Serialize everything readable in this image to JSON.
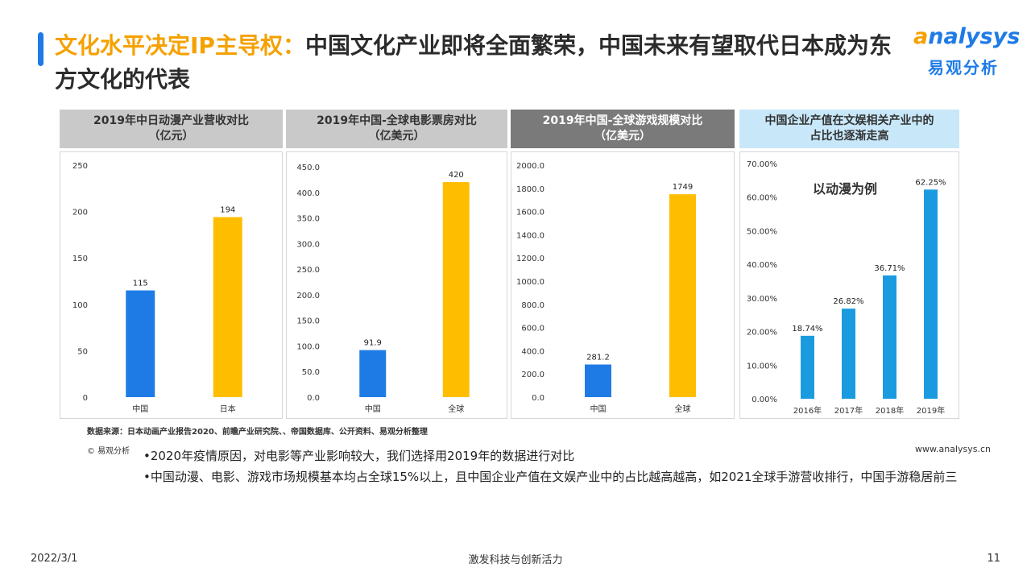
{
  "title": {
    "highlight": "文化水平决定IP主导权：",
    "rest": "中国文化产业即将全面繁荣，中国未来有望取代日本成为东方文化的代表"
  },
  "logo": {
    "en_o": "a",
    "en_rest": "nalysys",
    "cn": "易观分析"
  },
  "colors": {
    "blue": "#1e7be6",
    "yellow": "#ffbd00",
    "sky": "#1a9be0",
    "accent": "#f5a100"
  },
  "chart_data": [
    {
      "type": "bar",
      "title": "2019年中日动漫产业营收对比\n（亿元）",
      "categories": [
        "中国",
        "日本"
      ],
      "values": [
        115,
        194
      ],
      "labels": [
        "115",
        "194"
      ],
      "ylim": [
        0,
        250
      ],
      "yticks": [
        "250",
        "200",
        "150",
        "100",
        "50",
        "0"
      ],
      "bar_colors": [
        "#1e7be6",
        "#ffbd00"
      ]
    },
    {
      "type": "bar",
      "title": "2019年中国-全球电影票房对比\n（亿美元）",
      "categories": [
        "中国",
        "全球"
      ],
      "values": [
        91.9,
        420
      ],
      "labels": [
        "91.9",
        "420"
      ],
      "ylim": [
        0,
        450
      ],
      "yticks": [
        "450.0",
        "400.0",
        "350.0",
        "300.0",
        "250.0",
        "200.0",
        "150.0",
        "100.0",
        "50.0",
        "0.0"
      ],
      "bar_colors": [
        "#1e7be6",
        "#ffbd00"
      ]
    },
    {
      "type": "bar",
      "title": "2019年中国-全球游戏规模对比\n（亿美元）",
      "categories": [
        "中国",
        "全球"
      ],
      "values": [
        281.2,
        1749
      ],
      "labels": [
        "281.2",
        "1749"
      ],
      "ylim": [
        0,
        2000
      ],
      "yticks": [
        "2000.0",
        "1800.0",
        "1600.0",
        "1400.0",
        "1200.0",
        "1000.0",
        "800.0",
        "600.0",
        "400.0",
        "200.0",
        "0.0"
      ],
      "bar_colors": [
        "#1e7be6",
        "#ffbd00"
      ]
    },
    {
      "type": "bar",
      "title": "中国企业产值在文娱相关产业中的\n占比也逐渐走高",
      "annotation": "以动漫为例",
      "categories": [
        "2016年",
        "2017年",
        "2018年",
        "2019年"
      ],
      "values": [
        18.74,
        26.82,
        36.71,
        62.25
      ],
      "labels": [
        "18.74%",
        "26.82%",
        "36.71%",
        "62.25%"
      ],
      "ylim": [
        0,
        70
      ],
      "yticks": [
        "70.00%",
        "60.00%",
        "50.00%",
        "40.00%",
        "30.00%",
        "20.00%",
        "10.00%",
        "0.00%"
      ],
      "bar_colors": [
        "#1a9be0",
        "#1a9be0",
        "#1a9be0",
        "#1a9be0"
      ]
    }
  ],
  "source": "数据来源：日本动画产业报告2020、前瞻产业研究院、、帝国数据库、公开资料、易观分析整理",
  "copyright": "© 易观分析",
  "website": "www.analysys.cn",
  "bullets": [
    "•2020年疫情原因，对电影等产业影响较大，我们选择用2019年的数据进行对比",
    "•中国动漫、电影、游戏市场规模基本均占全球15%以上，且中国企业产值在文娱产业中的占比越高越高，如2021全球手游营收排行，中国手游稳居前三"
  ],
  "footer": {
    "date": "2022/3/1",
    "slogan": "激发科技与创新活力",
    "page": "11"
  }
}
